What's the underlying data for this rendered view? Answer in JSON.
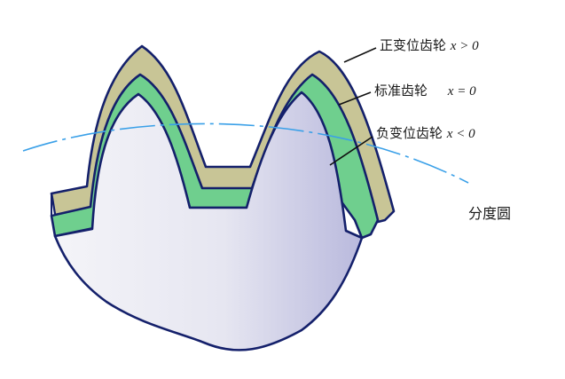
{
  "labels": {
    "positive": {
      "name": "正变位齿轮",
      "formula": "x > 0"
    },
    "standard": {
      "name": "标准齿轮",
      "formula": "x = 0"
    },
    "negative": {
      "name": "负变位齿轮",
      "formula": "x < 0"
    },
    "pitch_circle": "分度圆"
  },
  "colors": {
    "outline": "#14206b",
    "positive_fill": "#c8c596",
    "standard_fill": "#6fcf8e",
    "body_light": "#f1f1f7",
    "body_dark": "#b8b8dc",
    "pitch_circle": "#3aa0e8"
  }
}
